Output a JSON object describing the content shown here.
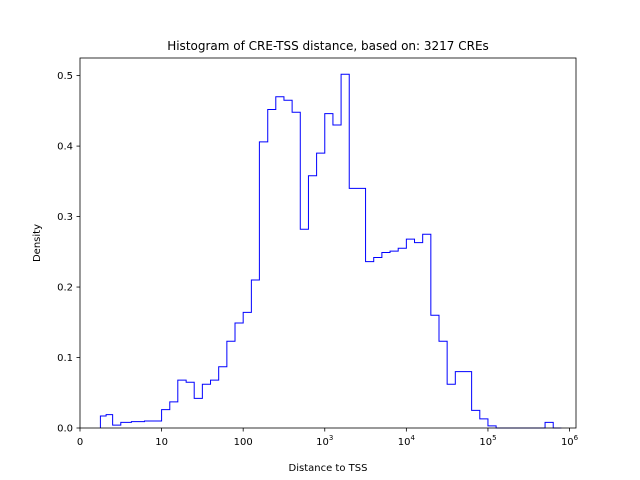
{
  "chart_data": {
    "type": "histogram",
    "title": "Histogram of CRE-TSS distance, based on: 3217 CREs",
    "xlabel": "Distance to TSS",
    "ylabel": "Density",
    "x_scale": "symlog",
    "x_linthresh": 10,
    "xlim": [
      0,
      1200000
    ],
    "ylim": [
      0,
      0.525
    ],
    "grid": false,
    "color": "#0000ff",
    "histtype": "step",
    "x_ticks": [
      {
        "value": 0,
        "base": "0",
        "exp": ""
      },
      {
        "value": 10,
        "base": "10",
        "exp": ""
      },
      {
        "value": 100,
        "base": "100",
        "exp": ""
      },
      {
        "value": 1000,
        "base": "10",
        "exp": "3"
      },
      {
        "value": 10000,
        "base": "10",
        "exp": "4"
      },
      {
        "value": 100000,
        "base": "10",
        "exp": "5"
      },
      {
        "value": 1000000,
        "base": "10",
        "exp": "6"
      }
    ],
    "y_ticks": [
      "0.0",
      "0.1",
      "0.2",
      "0.3",
      "0.4",
      "0.5"
    ],
    "bin_edges": [
      2.5,
      3.2,
      4.0,
      5.0,
      6.3,
      7.9,
      10,
      12.6,
      15.8,
      20,
      25.1,
      31.6,
      39.8,
      50.1,
      63.1,
      79.4,
      100,
      126,
      158,
      200,
      251,
      316,
      398,
      501,
      631,
      794,
      1000,
      1259,
      1585,
      1995,
      2512,
      3162,
      3981,
      5012,
      6310,
      7943,
      10000,
      12589,
      15849,
      19953,
      25119,
      31623,
      39811,
      50119,
      63096,
      79433,
      100000,
      125893,
      158489,
      199526,
      251189,
      316228,
      398107,
      501187,
      630957,
      794328
    ],
    "values": [
      0.017,
      0.019,
      0.004,
      0.008,
      0.009,
      0.01,
      0.026,
      0.037,
      0.068,
      0.065,
      0.042,
      0.062,
      0.068,
      0.087,
      0.123,
      0.149,
      0.164,
      0.21,
      0.406,
      0.452,
      0.47,
      0.465,
      0.448,
      0.282,
      0.358,
      0.39,
      0.446,
      0.43,
      0.502,
      0.34,
      0.34,
      0.236,
      0.242,
      0.249,
      0.251,
      0.255,
      0.268,
      0.263,
      0.275,
      0.16,
      0.123,
      0.062,
      0.08,
      0.08,
      0.025,
      0.013,
      0.003,
      0.0,
      0.0,
      0.0,
      0.0,
      0.0,
      0.0,
      0.008,
      0.0
    ]
  }
}
